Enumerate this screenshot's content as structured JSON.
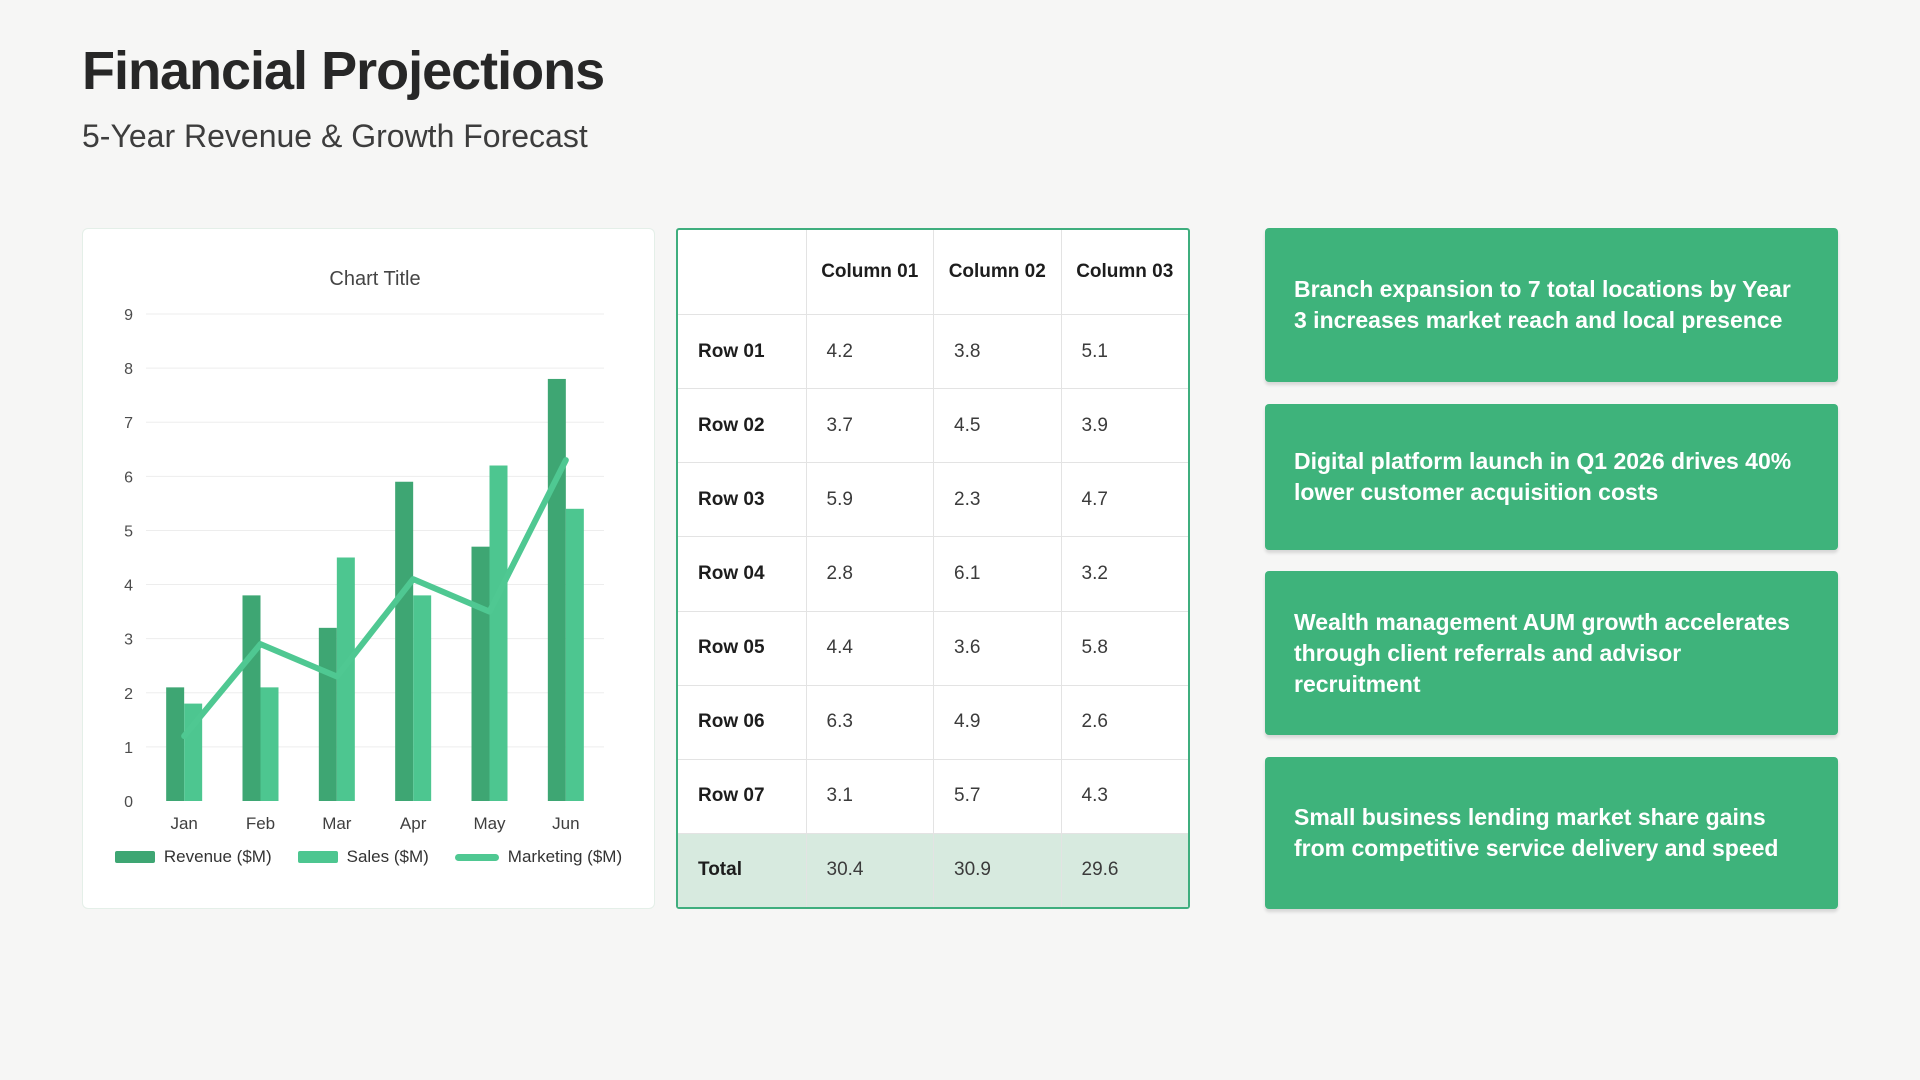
{
  "header": {
    "title": "Financial Projections",
    "subtitle": "5-Year Revenue & Growth Forecast"
  },
  "chart_data": {
    "type": "bar",
    "title": "Chart Title",
    "categories": [
      "Jan",
      "Feb",
      "Mar",
      "Apr",
      "May",
      "Jun"
    ],
    "series": [
      {
        "name": "Revenue ($M)",
        "type": "bar",
        "color": "#3ea673",
        "values": [
          2.1,
          3.8,
          3.2,
          5.9,
          4.7,
          7.8
        ]
      },
      {
        "name": "Sales ($M)",
        "type": "bar",
        "color": "#4dc690",
        "values": [
          1.8,
          2.1,
          4.5,
          3.8,
          6.2,
          5.4
        ]
      },
      {
        "name": "Marketing ($M)",
        "type": "line",
        "color": "#4fc892",
        "values": [
          1.2,
          2.9,
          2.3,
          4.1,
          3.5,
          6.3
        ]
      }
    ],
    "xlabel": "",
    "ylabel": "",
    "ylim": [
      0,
      9
    ],
    "yticks": [
      0,
      1,
      2,
      3,
      4,
      5,
      6,
      7,
      8,
      9
    ],
    "grid": true,
    "legend_position": "bottom"
  },
  "table": {
    "columns": [
      "",
      "Column 01",
      "Column 02",
      "Column 03"
    ],
    "rows": [
      {
        "label": "Row 01",
        "values": [
          "4.2",
          "3.8",
          "5.1"
        ]
      },
      {
        "label": "Row 02",
        "values": [
          "3.7",
          "4.5",
          "3.9"
        ]
      },
      {
        "label": "Row 03",
        "values": [
          "5.9",
          "2.3",
          "4.7"
        ]
      },
      {
        "label": "Row 04",
        "values": [
          "2.8",
          "6.1",
          "3.2"
        ]
      },
      {
        "label": "Row 05",
        "values": [
          "4.4",
          "3.6",
          "5.8"
        ]
      },
      {
        "label": "Row 06",
        "values": [
          "6.3",
          "4.9",
          "2.6"
        ]
      },
      {
        "label": "Row 07",
        "values": [
          "3.1",
          "5.7",
          "4.3"
        ]
      }
    ],
    "total": {
      "label": "Total",
      "values": [
        "30.4",
        "30.9",
        "29.6"
      ]
    }
  },
  "cards": [
    "Branch expansion to 7 total locations by Year 3 increases market reach and local presence",
    "Digital platform launch in Q1 2026 drives 40% lower customer acquisition costs",
    "Wealth management AUM growth accelerates through client referrals and advisor recruitment",
    "Small business lending market share gains from competitive service delivery and speed"
  ],
  "colors": {
    "page_bg": "#f6f6f5",
    "revenue": "#3ea673",
    "sales": "#4dc690",
    "marketing": "#4fc892",
    "card_bg": "#3eb37b",
    "table_border": "#3fae7e",
    "total_row_bg": "#d7eadf",
    "gridline": "#ededed"
  }
}
